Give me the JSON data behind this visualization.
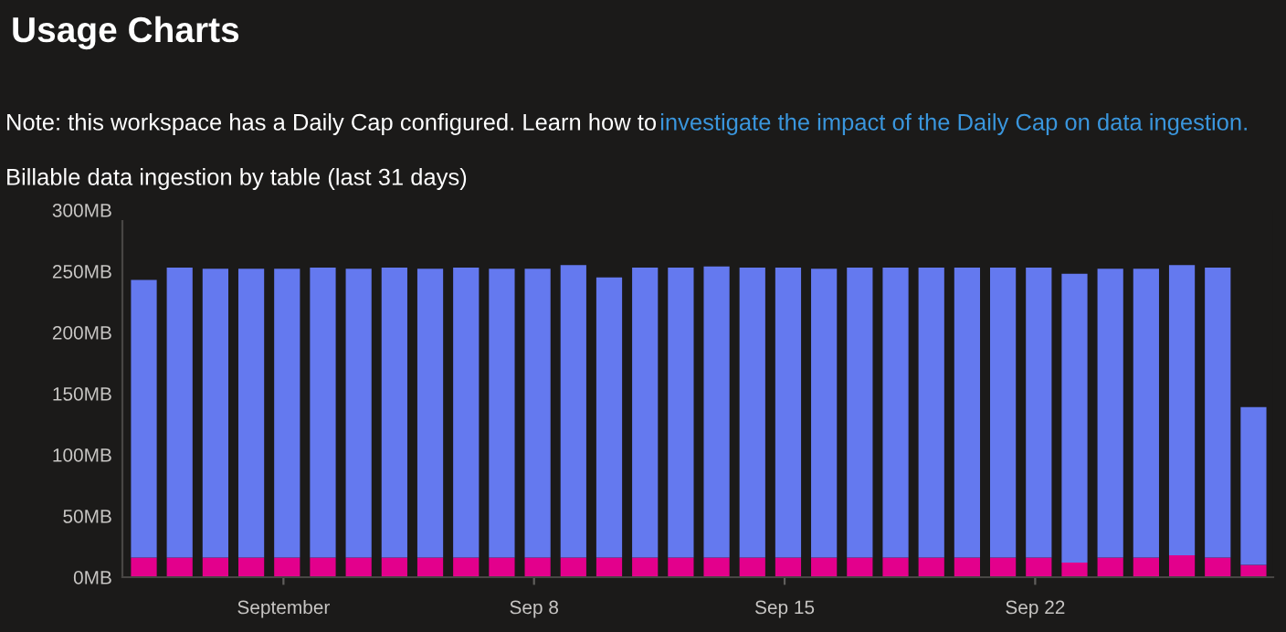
{
  "chart_data": {
    "type": "bar",
    "title": "Usage Charts",
    "subtitle": "Billable data ingestion by table (last 31 days)",
    "annotations": [
      "Note: this workspace has a Daily Cap configured. Learn how to",
      "investigate the impact of the Daily Cap on data ingestion."
    ],
    "categories": [
      null,
      null,
      null,
      null,
      "September",
      null,
      null,
      null,
      null,
      null,
      null,
      "Sep 8",
      null,
      null,
      null,
      null,
      null,
      null,
      "Sep 15",
      null,
      null,
      null,
      null,
      null,
      null,
      "Sep 22",
      null,
      null,
      null,
      null,
      null,
      null
    ],
    "stacked": true,
    "series": [
      {
        "color": "#e3008c",
        "values": [
          16,
          16,
          16,
          16,
          16,
          16,
          16,
          16,
          16,
          16,
          16,
          16,
          16,
          16,
          16,
          16,
          16,
          16,
          16,
          16,
          16,
          16,
          16,
          16,
          16,
          16,
          12,
          16,
          16,
          18,
          16,
          10
        ]
      },
      {
        "color": "#6479ef",
        "values": [
          227,
          237,
          236,
          236,
          236,
          237,
          236,
          237,
          236,
          237,
          236,
          236,
          239,
          229,
          237,
          237,
          238,
          237,
          237,
          236,
          237,
          237,
          237,
          237,
          237,
          237,
          236,
          236,
          236,
          237,
          237,
          129
        ]
      }
    ],
    "ylim": [
      0,
      300
    ],
    "yticks": [
      {
        "value": 0,
        "label": "0MB"
      },
      {
        "value": 50,
        "label": "50MB"
      },
      {
        "value": 100,
        "label": "100MB"
      },
      {
        "value": 150,
        "label": "150MB"
      },
      {
        "value": 200,
        "label": "200MB"
      },
      {
        "value": 250,
        "label": "250MB"
      },
      {
        "value": 300,
        "label": "300MB"
      }
    ],
    "grid": false,
    "legend": false
  }
}
